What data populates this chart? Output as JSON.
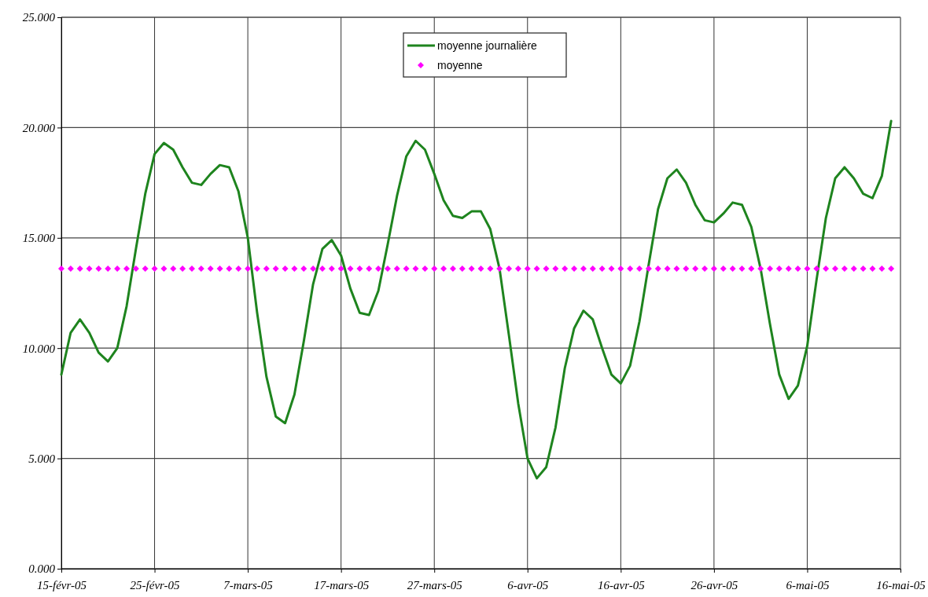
{
  "chart_data": {
    "type": "line",
    "x": [
      "--02-15",
      "--02-16",
      "--02-17",
      "--02-18",
      "--02-19",
      "--02-20",
      "--02-21",
      "--02-22",
      "--02-23",
      "--02-24",
      "--02-25",
      "--02-26",
      "--02-27",
      "--02-28",
      "--03-01",
      "--03-02",
      "--03-03",
      "--03-04",
      "--03-05",
      "--03-06",
      "--03-07",
      "--03-08",
      "--03-09",
      "--03-10",
      "--03-11",
      "--03-12",
      "--03-13",
      "--03-14",
      "--03-15",
      "--03-16",
      "--03-17",
      "--03-18",
      "--03-19",
      "--03-20",
      "--03-21",
      "--03-22",
      "--03-23",
      "--03-24",
      "--03-25",
      "--03-26",
      "--03-27",
      "--03-28",
      "--03-29",
      "--03-30",
      "--03-31",
      "--04-01",
      "--04-02",
      "--04-03",
      "--04-04",
      "--04-05",
      "--04-06",
      "--04-07",
      "--04-08",
      "--04-09",
      "--04-10",
      "--04-11",
      "--04-12",
      "--04-13",
      "--04-14",
      "--04-15",
      "--04-16",
      "--04-17",
      "--04-18",
      "--04-19",
      "--04-20",
      "--04-21",
      "--04-22",
      "--04-23",
      "--04-24",
      "--04-25",
      "--04-26",
      "--04-27",
      "--04-28",
      "--04-29",
      "--04-30",
      "--05-01",
      "--05-02",
      "--05-03",
      "--05-04",
      "--05-05",
      "--05-06",
      "--05-07",
      "--05-08",
      "--05-09",
      "--05-10",
      "--05-11",
      "--05-12",
      "--05-13",
      "--05-14",
      "--05-15"
    ],
    "series": [
      {
        "name": "moyenne journalière",
        "color": "#1e841e",
        "values": [
          8.8,
          10.7,
          11.3,
          10.7,
          9.8,
          9.4,
          10.0,
          11.9,
          14.5,
          17.0,
          18.8,
          19.3,
          19.0,
          18.2,
          17.5,
          17.4,
          17.9,
          18.3,
          18.2,
          17.1,
          15.0,
          11.6,
          8.7,
          6.9,
          6.6,
          7.9,
          10.3,
          12.9,
          14.5,
          14.9,
          14.2,
          12.7,
          11.6,
          11.5,
          12.6,
          14.7,
          16.9,
          18.7,
          19.4,
          19.0,
          17.9,
          16.7,
          16.0,
          15.9,
          16.2,
          16.2,
          15.4,
          13.6,
          10.6,
          7.5,
          5.0,
          4.1,
          4.6,
          6.4,
          9.1,
          10.9,
          11.7,
          11.3,
          10.0,
          8.8,
          8.4,
          9.2,
          11.2,
          13.8,
          16.3,
          17.7,
          18.1,
          17.5,
          16.5,
          15.8,
          15.7,
          16.1,
          16.6,
          16.5,
          15.5,
          13.6,
          11.1,
          8.8,
          7.7,
          8.3,
          10.1,
          13.1,
          15.9,
          17.7,
          18.2,
          17.7,
          17.0,
          16.8,
          17.8,
          20.3
        ]
      },
      {
        "name": "moyenne",
        "type": "scatter",
        "marker": "diamond",
        "color": "#ff00ff",
        "values": [
          13.6,
          13.6,
          13.6,
          13.6,
          13.6,
          13.6,
          13.6,
          13.6,
          13.6,
          13.6,
          13.6,
          13.6,
          13.6,
          13.6,
          13.6,
          13.6,
          13.6,
          13.6,
          13.6,
          13.6,
          13.6,
          13.6,
          13.6,
          13.6,
          13.6,
          13.6,
          13.6,
          13.6,
          13.6,
          13.6,
          13.6,
          13.6,
          13.6,
          13.6,
          13.6,
          13.6,
          13.6,
          13.6,
          13.6,
          13.6,
          13.6,
          13.6,
          13.6,
          13.6,
          13.6,
          13.6,
          13.6,
          13.6,
          13.6,
          13.6,
          13.6,
          13.6,
          13.6,
          13.6,
          13.6,
          13.6,
          13.6,
          13.6,
          13.6,
          13.6,
          13.6,
          13.6,
          13.6,
          13.6,
          13.6,
          13.6,
          13.6,
          13.6,
          13.6,
          13.6,
          13.6,
          13.6,
          13.6,
          13.6,
          13.6,
          13.6,
          13.6,
          13.6,
          13.6,
          13.6,
          13.6,
          13.6,
          13.6,
          13.6,
          13.6,
          13.6,
          13.6,
          13.6,
          13.6,
          13.6
        ]
      }
    ],
    "xlim": [
      "--02-15",
      "--05-16"
    ],
    "xticks": [
      {
        "value": "--02-15",
        "label": "15-févr-05"
      },
      {
        "value": "--02-25",
        "label": "25-févr-05"
      },
      {
        "value": "--03-07",
        "label": "7-mars-05"
      },
      {
        "value": "--03-17",
        "label": "17-mars-05"
      },
      {
        "value": "--03-27",
        "label": "27-mars-05"
      },
      {
        "value": "--04-06",
        "label": "6-avr-05"
      },
      {
        "value": "--04-16",
        "label": "16-avr-05"
      },
      {
        "value": "--04-26",
        "label": "26-avr-05"
      },
      {
        "value": "--05-06",
        "label": "6-mai-05"
      },
      {
        "value": "--05-16",
        "label": "16-mai-05"
      }
    ],
    "ylim": [
      0,
      25
    ],
    "yticks": [
      {
        "value": 0,
        "label": "0.000"
      },
      {
        "value": 5,
        "label": "5.000"
      },
      {
        "value": 10,
        "label": "10.000"
      },
      {
        "value": 15,
        "label": "15.000"
      },
      {
        "value": 20,
        "label": "20.000"
      },
      {
        "value": 25,
        "label": "25.000"
      }
    ],
    "grid": true,
    "legend": "top",
    "line_style": "solid",
    "marker": "none"
  }
}
